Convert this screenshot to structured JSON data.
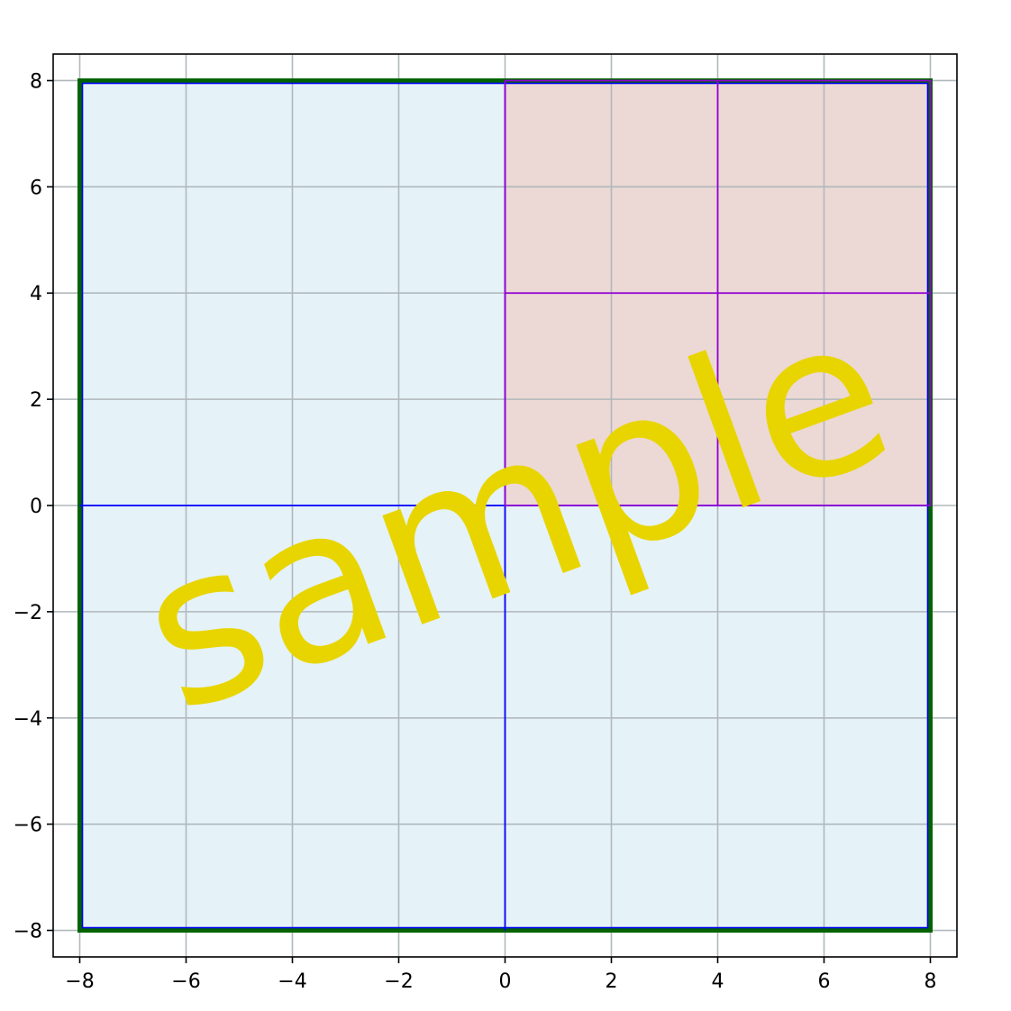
{
  "chart_data": {
    "type": "quadtree-diagram",
    "xlim": [
      -8.5,
      8.5
    ],
    "ylim": [
      -8.5,
      8.5
    ],
    "grid": true,
    "x_ticks": [
      -8,
      -6,
      -4,
      -2,
      0,
      2,
      4,
      6,
      8
    ],
    "y_ticks": [
      -8,
      -6,
      -4,
      -2,
      0,
      2,
      4,
      6,
      8
    ],
    "x_tick_labels": [
      "−8",
      "−6",
      "−4",
      "−2",
      "0",
      "2",
      "4",
      "6",
      "8"
    ],
    "y_tick_labels": [
      "−8",
      "−6",
      "−4",
      "−2",
      "0",
      "2",
      "4",
      "6",
      "8"
    ],
    "root_box": {
      "x0": -8,
      "y0": -8,
      "x1": 8,
      "y1": 8,
      "color": "#006400"
    },
    "level1_fill": {
      "x0": -8,
      "y0": -8,
      "x1": 8,
      "y1": 8,
      "color": "#add8e6"
    },
    "level1_split": {
      "x": 0,
      "y": 0,
      "color": "#0000ff"
    },
    "highlight_quadrant": {
      "x0": 0,
      "y0": 0,
      "x1": 8,
      "y1": 8,
      "fill": "#f5b7a8",
      "color": "#9400d3"
    },
    "level2_split": {
      "x": 4,
      "y": 4,
      "color": "#9400d3"
    },
    "watermark": {
      "text": "sample",
      "color": "#e8d500"
    }
  }
}
